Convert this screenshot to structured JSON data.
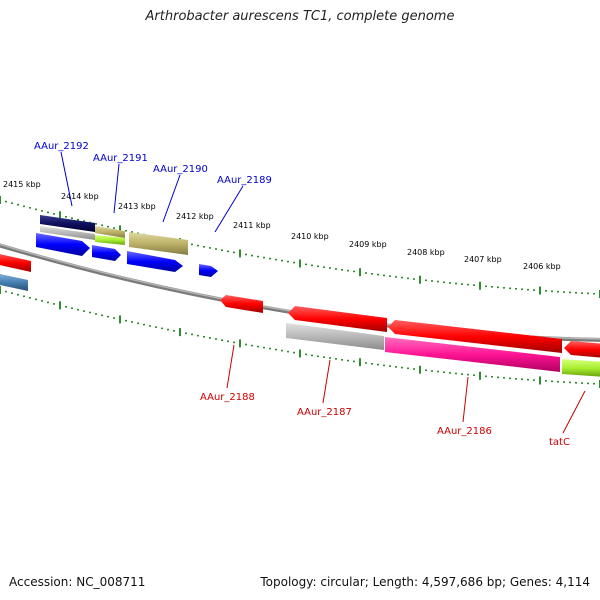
{
  "title": "Arthrobacter aurescens TC1, complete genome",
  "footer": {
    "accession": "Accession: NC_008711",
    "summary": "Topology: circular; Length: 4,597,686 bp; Genes: 4,114"
  },
  "colors": {
    "forward_label": "#0000cc",
    "reverse_label": "#cc0000",
    "tick": "#2e8b2e",
    "backbone": "#808080"
  },
  "scale_upper": [
    "2415 kbp",
    "2414 kbp",
    "2413 kbp",
    "2412 kbp",
    "2411 kbp",
    "2410 kbp",
    "2409 kbp",
    "2408 kbp",
    "2407 kbp",
    "2406 kbp"
  ],
  "gene_labels_forward": [
    "AAur_2192",
    "AAur_2191",
    "AAur_2190",
    "AAur_2189"
  ],
  "gene_labels_reverse": [
    "AAur_2188",
    "AAur_2187",
    "AAur_2186",
    "tatC"
  ]
}
